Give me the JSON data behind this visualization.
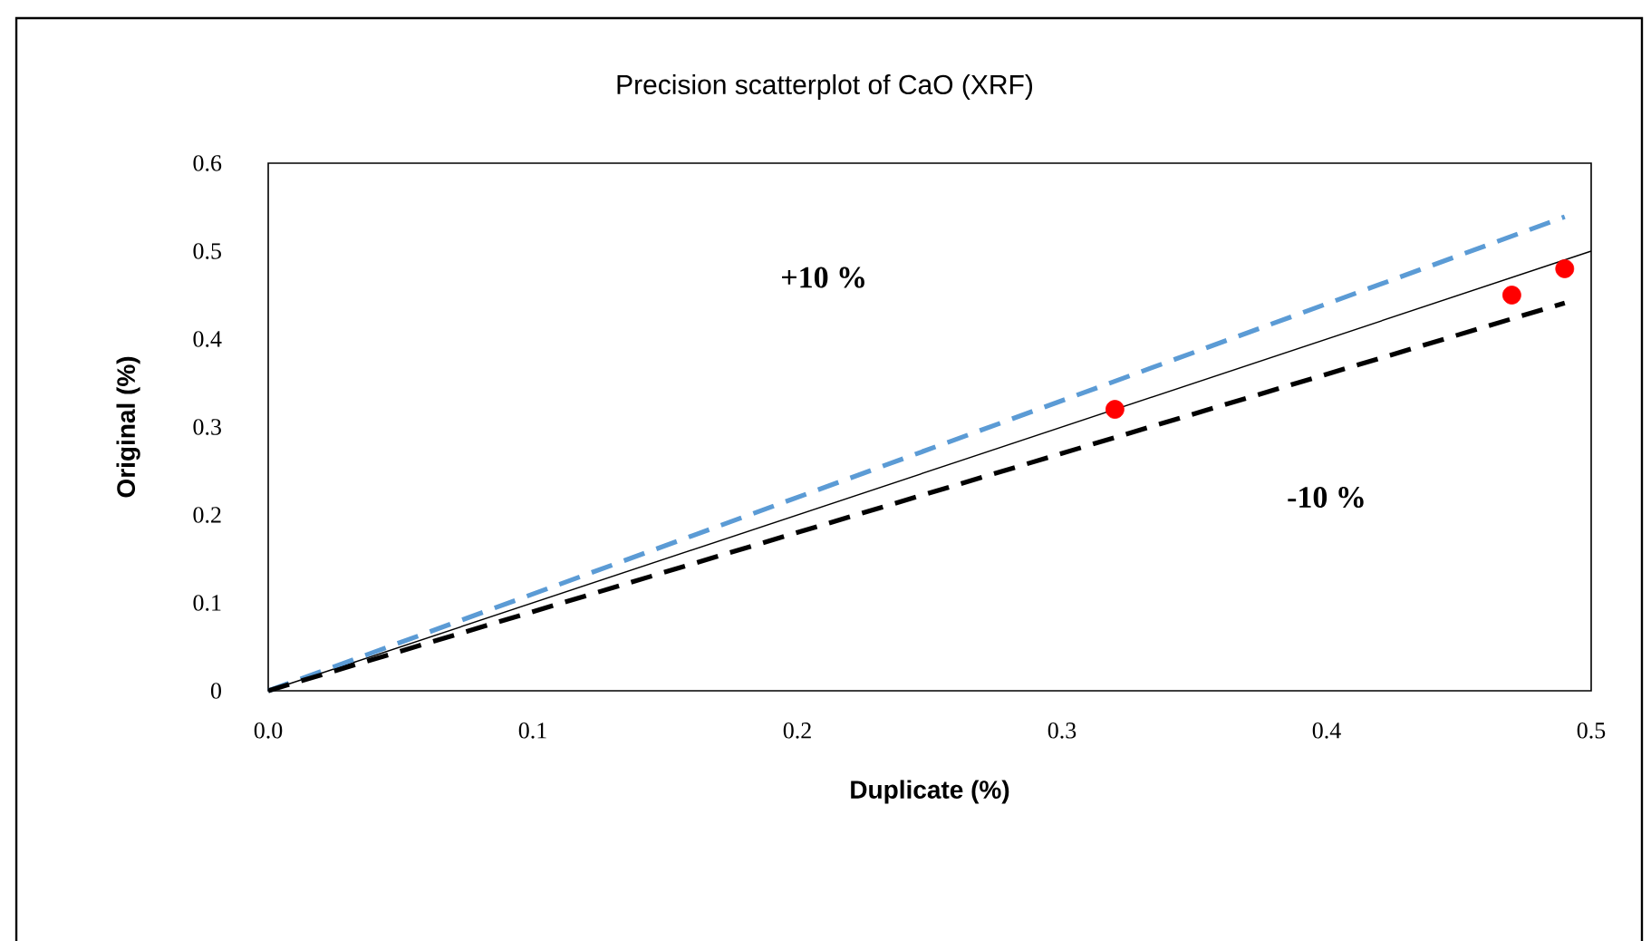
{
  "chart_data": {
    "type": "scatter",
    "title": "Precision scatterplot of CaO (XRF)",
    "xlabel": "Duplicate (%)",
    "ylabel": "Original (%)",
    "xlim": [
      0,
      0.5
    ],
    "ylim": [
      0,
      0.6
    ],
    "xticks": [
      {
        "value": 0,
        "label": "0.0"
      },
      0.1,
      0.2,
      0.3,
      0.4,
      0.5
    ],
    "yticks": [
      0,
      0.1,
      0.2,
      0.3,
      0.4,
      0.5,
      0.6
    ],
    "grid": false,
    "annotations": [
      "+10 %",
      "-10 %"
    ],
    "series": [
      {
        "type": "line",
        "color": "#000000",
        "line_style": "solid",
        "x": [
          0,
          0.5
        ],
        "values": [
          0,
          0.5
        ]
      },
      {
        "type": "line",
        "color": "#5b9bd5",
        "line_style": "dashed",
        "x": [
          0,
          0.49
        ],
        "values": [
          0,
          0.539
        ]
      },
      {
        "type": "line",
        "color": "#000000",
        "line_style": "dashed",
        "x": [
          0,
          0.49
        ],
        "values": [
          0,
          0.441
        ]
      },
      {
        "color": "#ff0000",
        "marker": "circle",
        "x": [
          0.32,
          0.47,
          0.49
        ],
        "values": [
          0.32,
          0.45,
          0.48
        ]
      }
    ]
  }
}
